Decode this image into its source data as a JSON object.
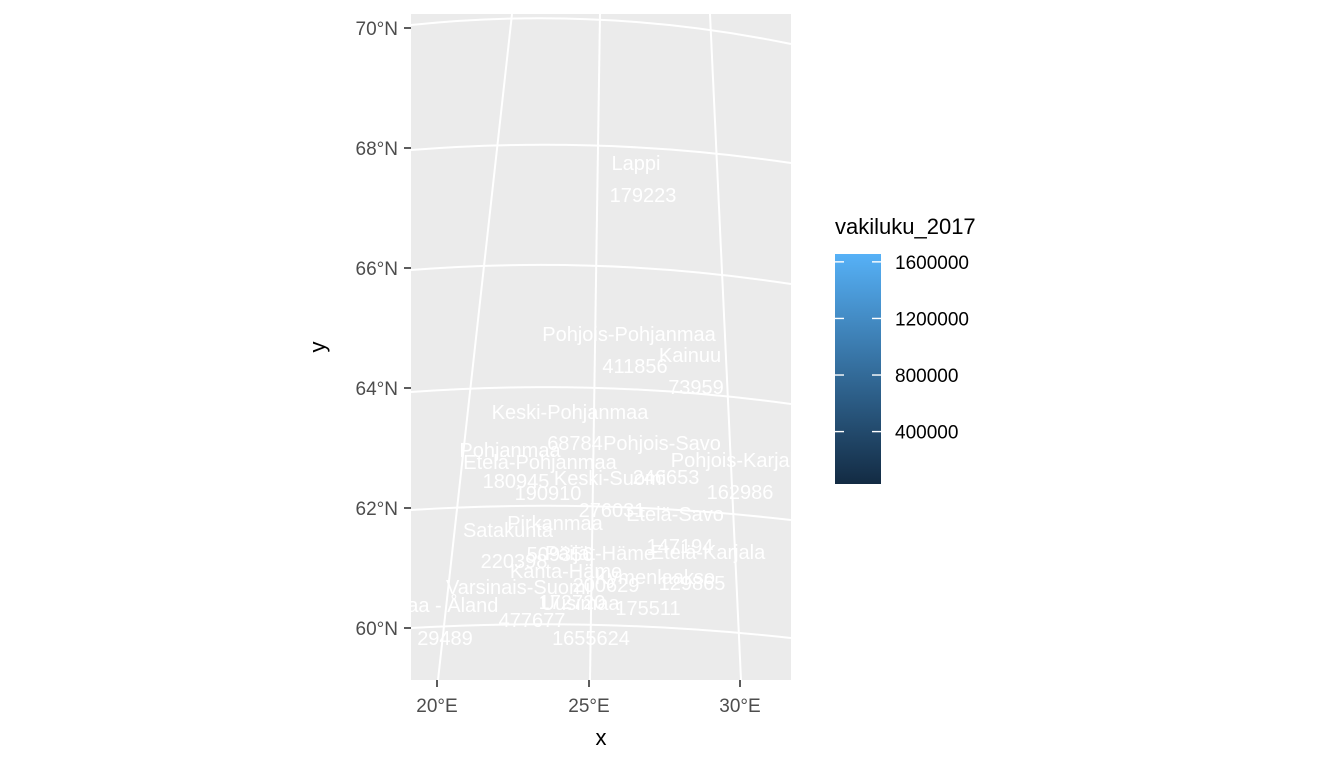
{
  "map": {
    "xlabel": "x",
    "ylabel": "y",
    "lat_ticks": [
      "60°N",
      "62°N",
      "64°N",
      "66°N",
      "68°N",
      "70°N"
    ],
    "lon_ticks": [
      "20°E",
      "25°E",
      "30°E"
    ],
    "panel_color": "#ebebeb",
    "grid_color": "#ffffff",
    "label_color": "#ffffff"
  },
  "legend": {
    "title": "vakiluku_2017",
    "breaks": [
      "1600000",
      "1200000",
      "800000",
      "400000"
    ],
    "break_values": [
      1600000,
      1200000,
      800000,
      400000
    ],
    "range": [
      29489,
      1655624
    ],
    "gradient_low": "#132b43",
    "gradient_high": "#56b1f7"
  },
  "regions": [
    {
      "name": "Lappi",
      "value": "179223"
    },
    {
      "name": "Pohjois-Pohjanmaa",
      "value": "411856"
    },
    {
      "name": "Kainuu",
      "value": "73959"
    },
    {
      "name": "Keski-Pohjanmaa",
      "value": "68784"
    },
    {
      "name": "Pohjois-Savo",
      "value": "246653"
    },
    {
      "name": "Pohjanmaa",
      "value": "180945"
    },
    {
      "name": "Etelä-Pohjanmaa",
      "value": "190910"
    },
    {
      "name": "Pohjois-Karjala",
      "value": "162986"
    },
    {
      "name": "Keski-Suomi",
      "value": "276031"
    },
    {
      "name": "Etelä-Savo",
      "value": "147194"
    },
    {
      "name": "Satakunta",
      "value": "220398"
    },
    {
      "name": "Pirkanmaa",
      "value": "509356"
    },
    {
      "name": "Etelä-Karjala",
      "value": "129865"
    },
    {
      "name": "Päijät-Häme",
      "value": "200629"
    },
    {
      "name": "Kanta-Häme",
      "value": "172720"
    },
    {
      "name": "Kymenlaakso",
      "value": "175511"
    },
    {
      "name": "Varsinais-Suomi",
      "value": "477677"
    },
    {
      "name": "Ahvenanmaa - Åland",
      "value": "29489"
    },
    {
      "name": "Uusimaa",
      "value": "1655624"
    }
  ]
}
